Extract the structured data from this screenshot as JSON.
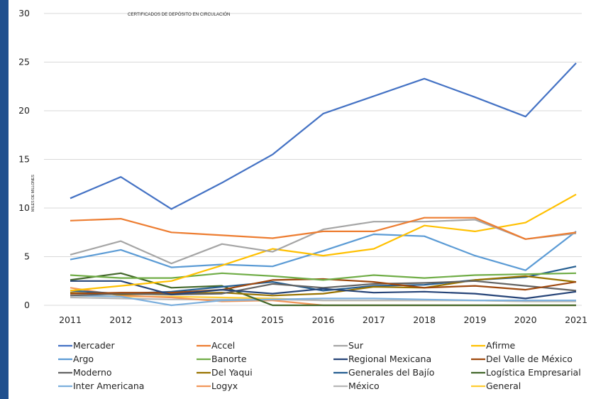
{
  "chart_data": {
    "type": "line",
    "title": "CERTIFICADOS DE DEPÓSITO EN CIRCULACIÓN",
    "ylabel": "MILES DE MILLONES",
    "xlabel": "",
    "ylim": [
      0,
      30
    ],
    "yticks": [
      0,
      5,
      10,
      15,
      20,
      25,
      30
    ],
    "categories": [
      "2011",
      "2012",
      "2013",
      "2014",
      "2015",
      "2016",
      "2017",
      "2018",
      "2019",
      "2020",
      "2021"
    ],
    "legend_position": "bottom",
    "grid": "horizontal",
    "series": [
      {
        "name": "Mercader",
        "color": "#4472c4",
        "values": [
          11.0,
          13.2,
          9.9,
          12.6,
          15.5,
          19.7,
          21.5,
          23.3,
          21.4,
          19.4,
          24.9
        ]
      },
      {
        "name": "Accel",
        "color": "#ed7d31",
        "values": [
          8.7,
          8.9,
          7.5,
          7.2,
          6.9,
          7.6,
          7.6,
          9.0,
          9.0,
          6.8,
          7.5
        ]
      },
      {
        "name": "Sur",
        "color": "#a5a5a5",
        "values": [
          5.2,
          6.6,
          4.3,
          6.3,
          5.5,
          7.8,
          8.6,
          8.6,
          8.8,
          6.8,
          7.4
        ]
      },
      {
        "name": "Afirme",
        "color": "#ffc000",
        "values": [
          1.5,
          2.0,
          2.5,
          4.1,
          5.8,
          5.1,
          5.8,
          8.2,
          7.6,
          8.5,
          11.4
        ]
      },
      {
        "name": "Argo",
        "color": "#5b9bd5",
        "values": [
          4.7,
          5.7,
          3.9,
          4.2,
          4.0,
          5.6,
          7.3,
          7.1,
          5.1,
          3.6,
          7.6
        ]
      },
      {
        "name": "Banorte",
        "color": "#70ad47",
        "values": [
          3.1,
          2.8,
          2.8,
          3.3,
          3.0,
          2.6,
          3.1,
          2.8,
          3.1,
          3.2,
          3.3
        ]
      },
      {
        "name": "Regional Mexicana",
        "color": "#264478",
        "values": [
          2.5,
          2.5,
          1.1,
          1.6,
          1.2,
          1.7,
          1.3,
          1.4,
          1.2,
          0.7,
          1.4
        ]
      },
      {
        "name": "Del Valle de México",
        "color": "#9e480e",
        "values": [
          1.2,
          1.3,
          1.3,
          1.6,
          2.6,
          2.7,
          2.4,
          1.8,
          2.0,
          1.6,
          2.4
        ]
      },
      {
        "name": "Moderno",
        "color": "#636363",
        "values": [
          1.0,
          1.2,
          1.1,
          1.2,
          2.2,
          1.8,
          2.2,
          2.3,
          2.5,
          2.0,
          1.5
        ]
      },
      {
        "name": "Del Yaqui",
        "color": "#997300",
        "values": [
          1.3,
          1.1,
          1.2,
          1.3,
          1.0,
          1.2,
          1.9,
          1.8,
          2.6,
          3.0,
          2.4
        ]
      },
      {
        "name": "Generales del Bajío",
        "color": "#255e91",
        "values": [
          1.5,
          1.2,
          1.4,
          1.9,
          2.4,
          1.5,
          2.0,
          2.1,
          2.6,
          2.9,
          4.0
        ]
      },
      {
        "name": "Logística Empresarial",
        "color": "#43682b",
        "values": [
          2.6,
          3.3,
          1.8,
          2.0,
          0.0,
          0.0,
          0.0,
          0.0,
          0.0,
          0.0,
          0.0
        ]
      },
      {
        "name": "Inter Americana",
        "color": "#7cafdd",
        "values": [
          1.0,
          0.9,
          0.0,
          0.5,
          0.6,
          0.7,
          0.7,
          0.6,
          0.5,
          0.5,
          0.5
        ]
      },
      {
        "name": "Logyx",
        "color": "#f1975a",
        "values": [
          1.8,
          1.0,
          0.8,
          0.4,
          0.5,
          0.0,
          0.0,
          0.0,
          0.0,
          0.0,
          0.0
        ]
      },
      {
        "name": "México",
        "color": "#b7b7b7",
        "values": [
          0.8,
          0.7,
          0.6,
          0.6,
          0.6,
          0.5,
          0.5,
          0.5,
          0.5,
          0.4,
          0.4
        ]
      },
      {
        "name": "General",
        "color": "#ffcd33",
        "values": [
          1.0,
          0.9,
          0.9,
          0.8,
          0.7,
          0.5,
          0.5,
          0.5,
          0.5,
          0.4,
          0.4
        ]
      }
    ]
  }
}
